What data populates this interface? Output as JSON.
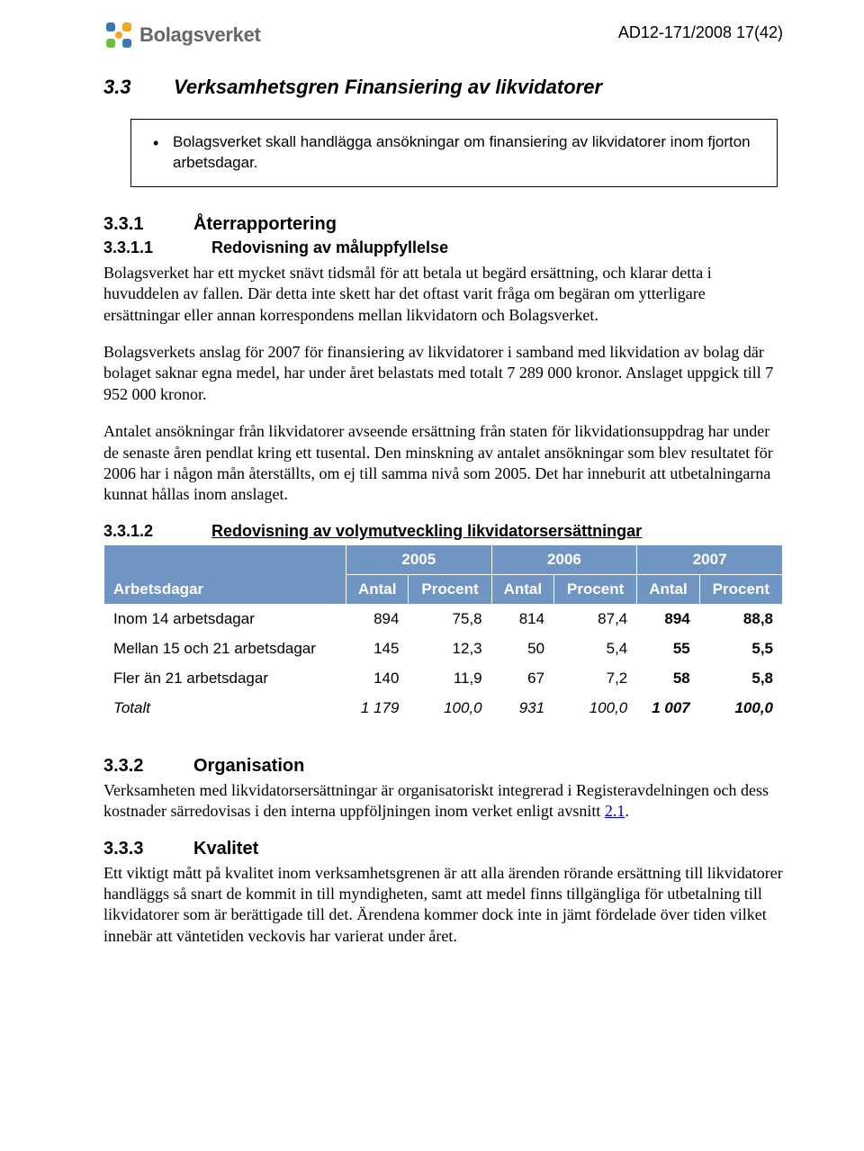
{
  "docRef": "AD12-171/2008 17(42)",
  "logoText": "Bolagsverket",
  "section33": {
    "num": "3.3",
    "title": "Verksamhetsgren Finansiering av likvidatorer"
  },
  "callout": "Bolagsverket skall handlägga ansökningar om finansiering av likvidatorer inom fjorton arbetsdagar.",
  "section331": {
    "num": "3.3.1",
    "title": "Återrapportering"
  },
  "section3311": {
    "num": "3.3.1.1",
    "title": "Redovisning av måluppfyllelse"
  },
  "p1": "Bolagsverket har ett mycket snävt tidsmål för att betala ut begärd ersättning, och klarar detta i huvuddelen av fallen. Där detta inte skett har det oftast varit fråga om begäran om ytterligare ersättningar eller annan korrespondens mellan likvidatorn och Bolagsverket.",
  "p2": "Bolagsverkets anslag för 2007 för finansiering av likvidatorer i samband med likvidation av bolag där bolaget saknar egna medel, har under året belastats med totalt 7 289 000 kronor. Anslaget uppgick till 7 952 000  kronor.",
  "p3": "Antalet ansökningar från likvidatorer avseende ersättning från staten för likvidationsuppdrag har under de senaste åren pendlat kring ett tusental. Den minskning av antalet ansökningar som blev resultatet för 2006 har i någon mån återställts, om ej till samma nivå som 2005. Det har inneburit att utbetalningarna kunnat hållas inom anslaget.",
  "section3312": {
    "num": "3.3.1.2",
    "title": "Redovisning av volymutveckling likvidatorsersättningar"
  },
  "table": {
    "headerBg": "#7095c2",
    "bodyBg": "#ffffff",
    "rowHeaderLabel": "Arbetsdagar",
    "years": [
      "2005",
      "2006",
      "2007"
    ],
    "subcols": [
      "Antal",
      "Procent"
    ],
    "rows": [
      {
        "label": "Inom 14 arbetsdagar",
        "cells": [
          "894",
          "75,8",
          "814",
          "87,4",
          "894",
          "88,8"
        ]
      },
      {
        "label": "Mellan 15 och 21 arbetsdagar",
        "cells": [
          "145",
          "12,3",
          "50",
          "5,4",
          "55",
          "5,5"
        ]
      },
      {
        "label": "Fler än 21 arbetsdagar",
        "cells": [
          "140",
          "11,9",
          "67",
          "7,2",
          "58",
          "5,8"
        ]
      },
      {
        "label": "Totalt",
        "total": true,
        "cells": [
          "1 179",
          "100,0",
          "931",
          "100,0",
          "1 007",
          "100,0"
        ]
      }
    ]
  },
  "section332": {
    "num": "3.3.2",
    "title": "Organisation"
  },
  "p4a": "Verksamheten med likvidatorsersättningar är organisatoriskt integrerad i Registeravdelningen och dess kostnader särredovisas i den interna uppföljningen inom verket enligt avsnitt ",
  "p4link": "2.1",
  "p4b": ".",
  "section333": {
    "num": "3.3.3",
    "title": "Kvalitet"
  },
  "p5": "Ett viktigt mått på kvalitet inom verksamhetsgrenen är att alla ärenden rörande ersättning till likvidatorer handläggs så snart de kommit in till myndigheten, samt att medel finns tillgängliga för utbetalning till likvidatorer som är berättigade till det. Ärendena kommer dock inte in jämt fördelade över tiden vilket innebär att väntetiden veckovis har varierat under året."
}
